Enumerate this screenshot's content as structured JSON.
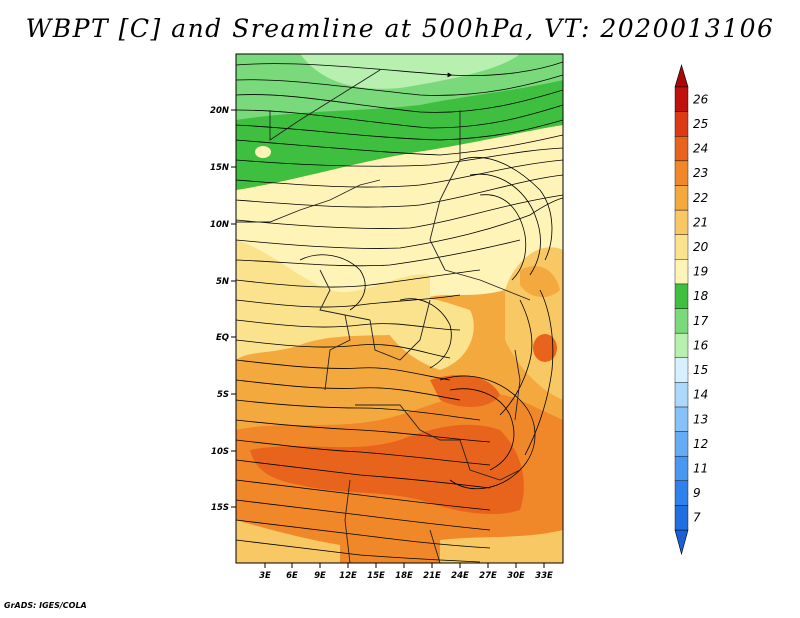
{
  "title": "WBPT [C] and Sreamline at 500hPa, VT: 2020013106",
  "credit": "GrADS: IGES/COLA",
  "map": {
    "lat_labels": [
      "20N",
      "15N",
      "10N",
      "5N",
      "EQ",
      "5S",
      "10S",
      "15S"
    ],
    "lon_labels": [
      "3E",
      "6E",
      "9E",
      "12E",
      "15E",
      "18E",
      "21E",
      "24E",
      "27E",
      "30E",
      "33E"
    ]
  },
  "colorbar": {
    "labels": [
      "7",
      "9",
      "11",
      "12",
      "13",
      "14",
      "15",
      "16",
      "17",
      "18",
      "19",
      "20",
      "21",
      "22",
      "23",
      "24",
      "25",
      "26"
    ],
    "colors": [
      "#1f6fe0",
      "#2f82ec",
      "#4a97f2",
      "#66acf5",
      "#86c2f8",
      "#acd8fb",
      "#d6f0ff",
      "#b8f0b0",
      "#7ad97a",
      "#3fbf3f",
      "#fff4b8",
      "#fbe28c",
      "#f7c864",
      "#f4a93e",
      "#f0882a",
      "#e8641c",
      "#dc3a14",
      "#c01010"
    ],
    "lower_arrow_color": "#1a5fd4",
    "upper_arrow_color": "#a80808"
  }
}
